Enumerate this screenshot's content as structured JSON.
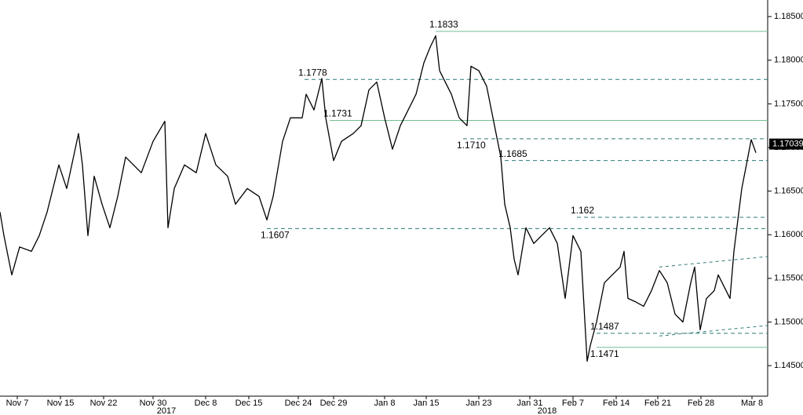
{
  "chart_data": {
    "type": "line",
    "series": [
      {
        "color": "#000000",
        "x": [
          0,
          5,
          15,
          25,
          40,
          50,
          60,
          75,
          85,
          100,
          105,
          112,
          120,
          130,
          140,
          150,
          160,
          170,
          180,
          195,
          210,
          214,
          222,
          235,
          250,
          262,
          275,
          290,
          300,
          315,
          330,
          340,
          348,
          360,
          370,
          385,
          390,
          400,
          410,
          415,
          425,
          435,
          450,
          460,
          470,
          480,
          490,
          500,
          510,
          520,
          530,
          540,
          548,
          555,
          560,
          575,
          585,
          595,
          600,
          610,
          620,
          630,
          638,
          643,
          650,
          655,
          660,
          670,
          680,
          690,
          700,
          710,
          720,
          730,
          740,
          748,
          752,
          760,
          770,
          780,
          790,
          795,
          800,
          810,
          820,
          830,
          840,
          850,
          860,
          870,
          880,
          885,
          892,
          900,
          910,
          915,
          920,
          930,
          935,
          940,
          945,
          950,
          957,
          963
        ],
        "values": [
          1.1626,
          1.1599,
          1.1554,
          1.1586,
          1.1581,
          1.1599,
          1.1626,
          1.168,
          1.1653,
          1.1716,
          1.168,
          1.1599,
          1.1667,
          1.1635,
          1.1608,
          1.1644,
          1.1689,
          1.168,
          1.1671,
          1.1707,
          1.173,
          1.1608,
          1.1653,
          1.168,
          1.1671,
          1.1716,
          1.168,
          1.1667,
          1.1635,
          1.1653,
          1.1644,
          1.1617,
          1.1644,
          1.1707,
          1.1734,
          1.1734,
          1.1761,
          1.1743,
          1.1779,
          1.1734,
          1.1685,
          1.1707,
          1.1716,
          1.1725,
          1.1766,
          1.1775,
          1.1734,
          1.1698,
          1.1725,
          1.1743,
          1.1761,
          1.1797,
          1.1815,
          1.1828,
          1.1788,
          1.1761,
          1.1734,
          1.1725,
          1.1793,
          1.1788,
          1.177,
          1.1725,
          1.1689,
          1.1635,
          1.1608,
          1.1572,
          1.1554,
          1.1608,
          1.159,
          1.1599,
          1.1608,
          1.159,
          1.1527,
          1.1599,
          1.1581,
          1.1455,
          1.1473,
          1.15,
          1.1545,
          1.1554,
          1.1563,
          1.1581,
          1.1527,
          1.1523,
          1.1518,
          1.1536,
          1.1559,
          1.1545,
          1.1509,
          1.15,
          1.1545,
          1.1563,
          1.1491,
          1.1527,
          1.1536,
          1.1554,
          1.1545,
          1.1527,
          1.1581,
          1.1617,
          1.1653,
          1.1676,
          1.1709,
          1.1694
        ]
      }
    ],
    "last_price": 1.17039,
    "levels": [
      {
        "value": 1.1833,
        "label": "1.1833",
        "x": 555,
        "style": "solid",
        "label_side": "above"
      },
      {
        "value": 1.1778,
        "label": "1.1778",
        "x": 388,
        "style": "dashed",
        "label_side": "above"
      },
      {
        "value": 1.1731,
        "label": "1.1731",
        "x": 420,
        "style": "solid",
        "label_side": "above"
      },
      {
        "value": 1.171,
        "label": "1.1710",
        "x": 590,
        "style": "dashed",
        "label_side": "below"
      },
      {
        "value": 1.1685,
        "label": "1.1685",
        "x": 643,
        "style": "dashed",
        "label_side": "above"
      },
      {
        "value": 1.162,
        "label": "1.162",
        "x": 735,
        "style": "dashed",
        "label_side": "above"
      },
      {
        "value": 1.1607,
        "label": "1.1607",
        "x": 340,
        "style": "dashed",
        "label_side": "below"
      },
      {
        "value": 1.1487,
        "label": "1.1487",
        "x": 760,
        "style": "dashed",
        "label_side": "above"
      },
      {
        "value": 1.1471,
        "label": "1.1471",
        "x": 760,
        "style": "solid",
        "label_side": "below"
      }
    ],
    "trendlines": [
      {
        "x": [
          840,
          978
        ],
        "y": [
          1.1563,
          1.1575
        ]
      },
      {
        "x": [
          840,
          978
        ],
        "y": [
          1.1484,
          1.1496
        ]
      }
    ],
    "xlim": [
      0,
      978
    ],
    "ylim": [
      1.1415,
      1.1869
    ],
    "xticks": [
      {
        "value": 22,
        "label": "Nov 7"
      },
      {
        "value": 77,
        "label": "Nov 15"
      },
      {
        "value": 132,
        "label": "Nov 22"
      },
      {
        "value": 195,
        "label": "Nov 30"
      },
      {
        "value": 262,
        "label": "Dec 8"
      },
      {
        "value": 317,
        "label": "Dec 15"
      },
      {
        "value": 380,
        "label": "Dec 24"
      },
      {
        "value": 425,
        "label": "Dec 29"
      },
      {
        "value": 490,
        "label": "Jan 8"
      },
      {
        "value": 543,
        "label": "Jan 15"
      },
      {
        "value": 610,
        "label": "Jan 23"
      },
      {
        "value": 675,
        "label": "Jan 31"
      },
      {
        "value": 730,
        "label": "Feb 7"
      },
      {
        "value": 785,
        "label": "Feb 14"
      },
      {
        "value": 838,
        "label": "Feb 21"
      },
      {
        "value": 893,
        "label": "Feb 28"
      },
      {
        "value": 958,
        "label": "Mar 8"
      }
    ],
    "years": [
      {
        "value": 212,
        "label": "2017"
      },
      {
        "value": 697,
        "label": "2018"
      }
    ],
    "yticks": [
      {
        "value": 1.145,
        "label": "1.14500"
      },
      {
        "value": 1.15,
        "label": "1.15000"
      },
      {
        "value": 1.155,
        "label": "1.15500"
      },
      {
        "value": 1.16,
        "label": "1.16000"
      },
      {
        "value": 1.165,
        "label": "1.16500"
      },
      {
        "value": 1.17,
        "label": "1.17000"
      },
      {
        "value": 1.175,
        "label": "1.17500"
      },
      {
        "value": 1.18,
        "label": "1.18000"
      },
      {
        "value": 1.185,
        "label": "1.18500"
      }
    ]
  }
}
